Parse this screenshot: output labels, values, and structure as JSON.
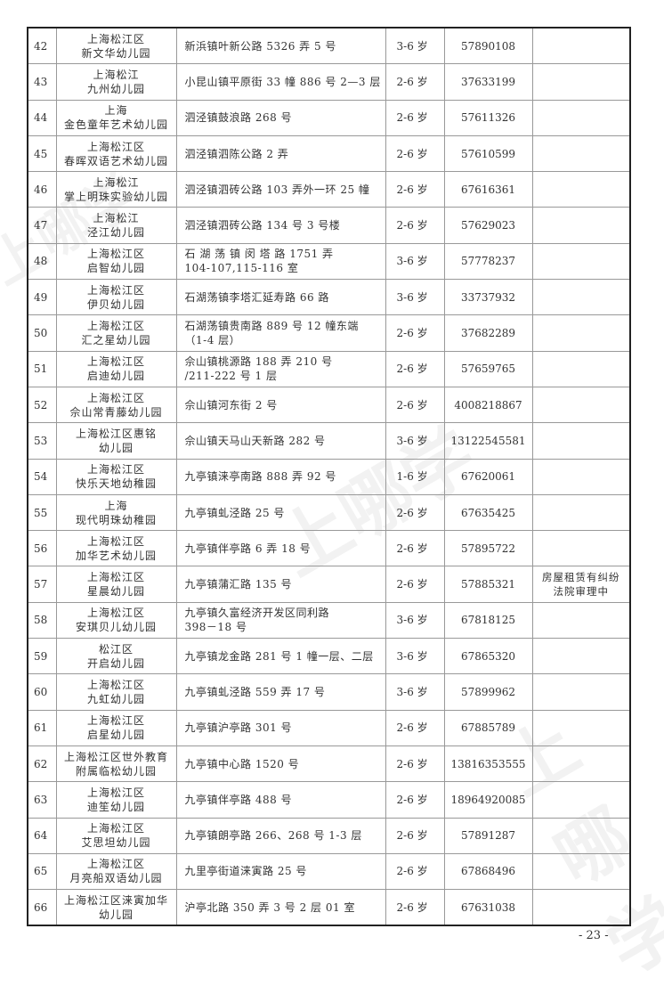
{
  "rows": [
    {
      "no": "42",
      "name": [
        "上海松江区",
        "新文华幼儿园"
      ],
      "address": [
        "新浜镇叶新公路 5326 弄 5 号"
      ],
      "age": "3-6 岁",
      "phone": "57890108",
      "note": []
    },
    {
      "no": "43",
      "name": [
        "上海松江",
        "九州幼儿园"
      ],
      "address": [
        "小昆山镇平原街 33 幢 886 号 2—3 层"
      ],
      "age": "2-6 岁",
      "phone": "37633199",
      "note": []
    },
    {
      "no": "44",
      "name": [
        "上海",
        "金色童年艺术幼儿园"
      ],
      "address": [
        "泗泾镇鼓浪路 268 号"
      ],
      "age": "2-6 岁",
      "phone": "57611326",
      "note": []
    },
    {
      "no": "45",
      "name": [
        "上海松江区",
        "春晖双语艺术幼儿园"
      ],
      "address": [
        "泗泾镇泗陈公路 2 弄"
      ],
      "age": "2-6 岁",
      "phone": "57610599",
      "note": []
    },
    {
      "no": "46",
      "name": [
        "上海松江",
        "掌上明珠实验幼儿园"
      ],
      "address": [
        "泗泾镇泗砖公路 103 弄外一环 25 幢"
      ],
      "age": "2-6 岁",
      "phone": "67616361",
      "note": []
    },
    {
      "no": "47",
      "name": [
        "上海松江",
        "泾江幼儿园"
      ],
      "address": [
        "泗泾镇泗砖公路 134 号 3 号楼"
      ],
      "age": "2-6 岁",
      "phone": "57629023",
      "note": []
    },
    {
      "no": "48",
      "name": [
        "上海松江区",
        "启智幼儿园"
      ],
      "address": [
        "石 湖 荡 镇 闵 塔 路 1751 弄",
        "104-107,115-116 室"
      ],
      "age": "3-6 岁",
      "phone": "57778237",
      "note": []
    },
    {
      "no": "49",
      "name": [
        "上海松江区",
        "伊贝幼儿园"
      ],
      "address": [
        "石湖荡镇李塔汇延寿路 66 路"
      ],
      "age": "3-6 岁",
      "phone": "33737932",
      "note": []
    },
    {
      "no": "50",
      "name": [
        "上海松江区",
        "汇之星幼儿园"
      ],
      "address": [
        "石湖荡镇贵南路 889 号 12 幢东端",
        "（1-4 层）"
      ],
      "age": "2-6 岁",
      "phone": "37682289",
      "note": []
    },
    {
      "no": "51",
      "name": [
        "上海松江区",
        "启迪幼儿园"
      ],
      "address": [
        "佘山镇桃源路 188 弄 210 号",
        "/211-222 号 1 层"
      ],
      "age": "2-6 岁",
      "phone": "57659765",
      "note": []
    },
    {
      "no": "52",
      "name": [
        "上海松江区",
        "佘山常青藤幼儿园"
      ],
      "address": [
        "佘山镇河东街 2 号"
      ],
      "age": "2-6 岁",
      "phone": "4008218867",
      "note": []
    },
    {
      "no": "53",
      "name": [
        "上海松江区惠铭",
        "幼儿园"
      ],
      "address": [
        "佘山镇天马山天新路 282 号"
      ],
      "age": "3-6 岁",
      "phone": "13122545581",
      "note": []
    },
    {
      "no": "54",
      "name": [
        "上海松江区",
        "快乐天地幼稚园"
      ],
      "address": [
        "九亭镇涞亭南路 888 弄 92 号"
      ],
      "age": "1-6 岁",
      "phone": "67620061",
      "note": []
    },
    {
      "no": "55",
      "name": [
        "上海",
        "现代明珠幼稚园"
      ],
      "address": [
        "九亭镇虬泾路 25 号"
      ],
      "age": "2-6 岁",
      "phone": "67635425",
      "note": []
    },
    {
      "no": "56",
      "name": [
        "上海松江区",
        "加华艺术幼儿园"
      ],
      "address": [
        "九亭镇伴亭路 6 弄 18 号"
      ],
      "age": "2-6 岁",
      "phone": "57895722",
      "note": []
    },
    {
      "no": "57",
      "name": [
        "上海松江区",
        "星晨幼儿园"
      ],
      "address": [
        "九亭镇蒲汇路 135 号"
      ],
      "age": "2-6 岁",
      "phone": "57885321",
      "note": [
        "房屋租赁有纠纷",
        "法院审理中"
      ]
    },
    {
      "no": "58",
      "name": [
        "上海松江区",
        "安琪贝儿幼儿园"
      ],
      "address": [
        "九亭镇久富经济开发区同利路",
        "398－18 号"
      ],
      "age": "3-6 岁",
      "phone": "67818125",
      "note": []
    },
    {
      "no": "59",
      "name": [
        "松江区",
        "开启幼儿园"
      ],
      "address": [
        "九亭镇龙金路 281 号 1 幢一层、二层"
      ],
      "age": "3-6 岁",
      "phone": "67865320",
      "note": []
    },
    {
      "no": "60",
      "name": [
        "上海松江区",
        "九虹幼儿园"
      ],
      "address": [
        "九亭镇虬泾路 559 弄 17 号"
      ],
      "age": "3-6 岁",
      "phone": "57899962",
      "note": []
    },
    {
      "no": "61",
      "name": [
        "上海松江区",
        "启星幼儿园"
      ],
      "address": [
        "九亭镇沪亭路 301 号"
      ],
      "age": "2-6 岁",
      "phone": "67885789",
      "note": []
    },
    {
      "no": "62",
      "name": [
        "上海松江区世外教育",
        "附属临松幼儿园"
      ],
      "address": [
        "九亭镇中心路 1520 号"
      ],
      "age": "2-6 岁",
      "phone": "13816353555",
      "note": []
    },
    {
      "no": "63",
      "name": [
        "上海松江区",
        "迪笙幼儿园"
      ],
      "address": [
        "九亭镇伴亭路 488 号"
      ],
      "age": "2-6 岁",
      "phone": "18964920085",
      "note": []
    },
    {
      "no": "64",
      "name": [
        "上海松江区",
        "艾思坦幼儿园"
      ],
      "address": [
        "九亭镇朗亭路 266、268 号 1-3 层"
      ],
      "age": "2-6 岁",
      "phone": "57891287",
      "note": []
    },
    {
      "no": "65",
      "name": [
        "上海松江区",
        "月亮船双语幼儿园"
      ],
      "address": [
        "九里亭街道涞寅路 25 号"
      ],
      "age": "2-6 岁",
      "phone": "67868496",
      "note": []
    },
    {
      "no": "66",
      "name": [
        "上海松江区涞寅加华",
        "幼儿园"
      ],
      "address": [
        "沪亭北路 350 弄 3 号 2 层 01 室"
      ],
      "age": "2-6 岁",
      "phone": "67631038",
      "note": []
    }
  ],
  "page_number": "- 23 -",
  "watermark": "上哪学"
}
